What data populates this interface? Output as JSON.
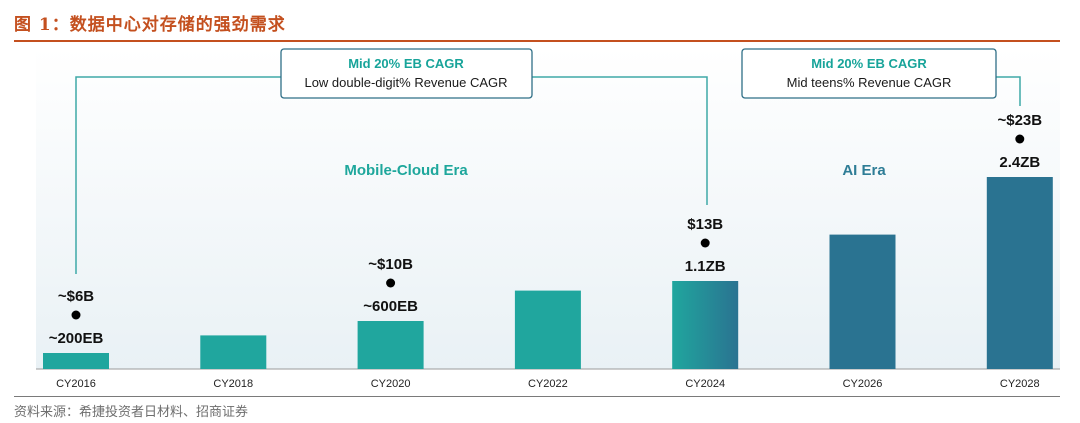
{
  "figure": {
    "title": "图 1：数据中心对存储的强劲需求",
    "source": "资料来源：希捷投资者日材料、招商证券"
  },
  "annotations": {
    "box_left": {
      "line1": "Mid 20% EB CAGR",
      "line2": "Low double-digit% Revenue CAGR"
    },
    "box_right": {
      "line1": "Mid 20% EB CAGR",
      "line2": "Mid teens% Revenue CAGR"
    },
    "era_left": "Mobile-Cloud Era",
    "era_right": "AI Era"
  },
  "colors": {
    "title": "#c4501f",
    "teal": "#20a69e",
    "blue": "#2a7391",
    "connector": "#3ea9a7",
    "box_border": "#2f6f87",
    "box_title": "#18a49a",
    "era_left": "#1ea79c",
    "era_right": "#2e7d96"
  },
  "chart_data": {
    "type": "bar",
    "categories": [
      "CY2016",
      "CY2018",
      "CY2020",
      "CY2022",
      "CY2024",
      "CY2026",
      "CY2028"
    ],
    "values": [
      0.2,
      0.42,
      0.6,
      0.98,
      1.1,
      1.68,
      2.4
    ],
    "ylim": [
      0,
      2.4
    ],
    "grid": false,
    "bar_labels": [
      "~200EB",
      "",
      "~600EB",
      "",
      "1.1ZB",
      "",
      "2.4ZB"
    ],
    "revenue_labels": [
      "~$6B",
      "",
      "~$10B",
      "",
      "$13B",
      "",
      "~$23B"
    ],
    "bar_colors": [
      "#20a69e",
      "#20a69e",
      "#20a69e",
      "#20a69e",
      "gradient",
      "#2a7391",
      "#2a7391"
    ]
  }
}
